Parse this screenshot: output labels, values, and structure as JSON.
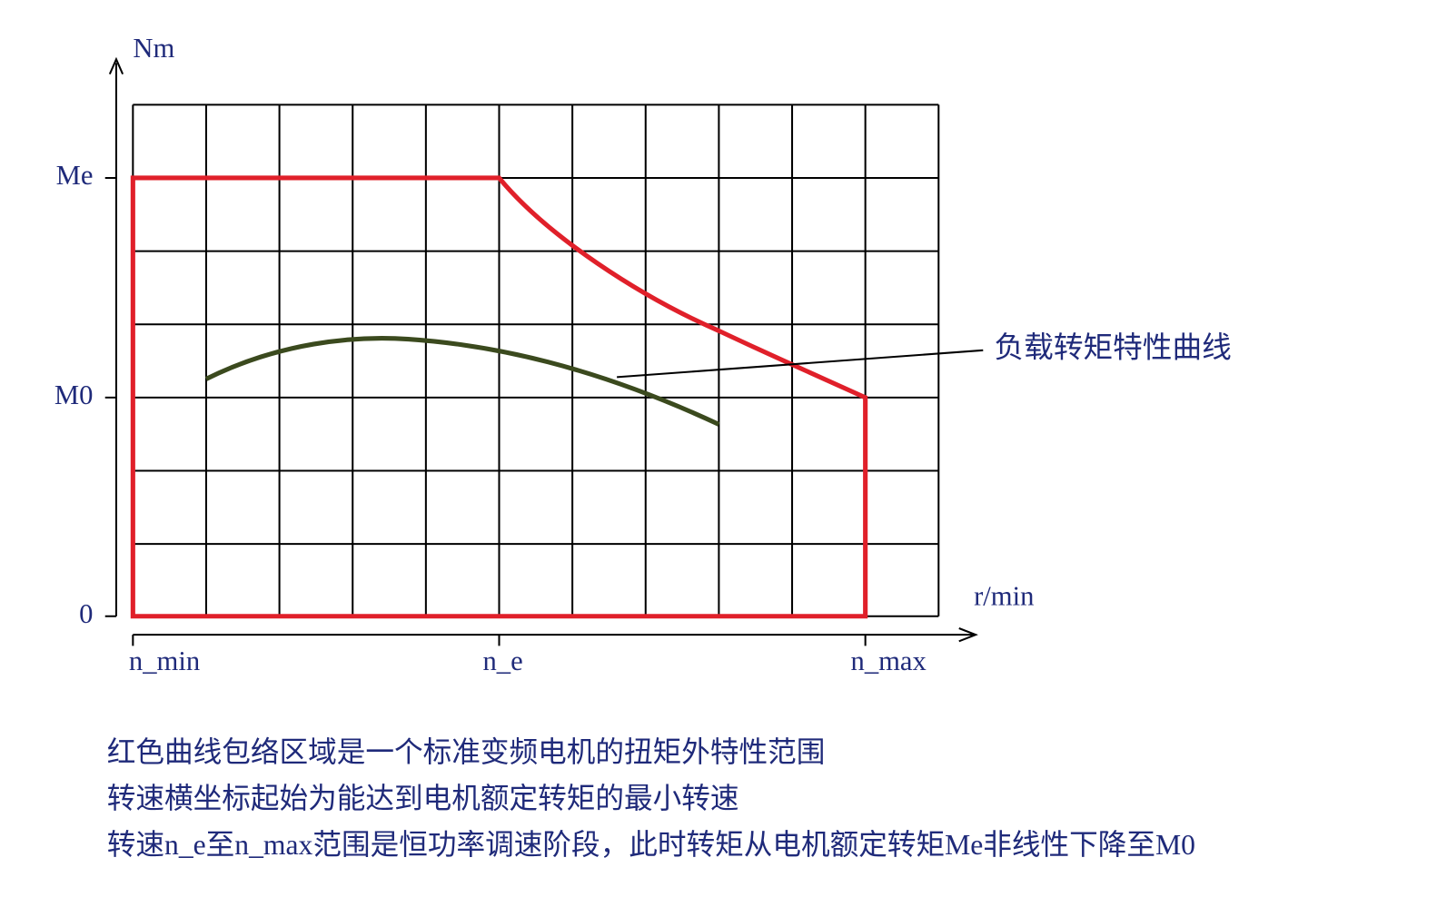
{
  "y_axis": {
    "unit": "Nm",
    "labels": [
      "Me",
      "M0",
      "0"
    ]
  },
  "x_axis": {
    "unit": "r/min",
    "labels": [
      "n_min",
      "n_e",
      "n_max"
    ]
  },
  "callout": "负载转矩特性曲线",
  "notes": [
    "红色曲线包络区域是一个标准变频电机的扭矩外特性范围",
    "转速横坐标起始为能达到电机额定转矩的最小转速",
    "转速n_e至n_max范围是恒功率调速阶段，此时转矩从电机额定转矩Me非线性下降至M0"
  ]
}
